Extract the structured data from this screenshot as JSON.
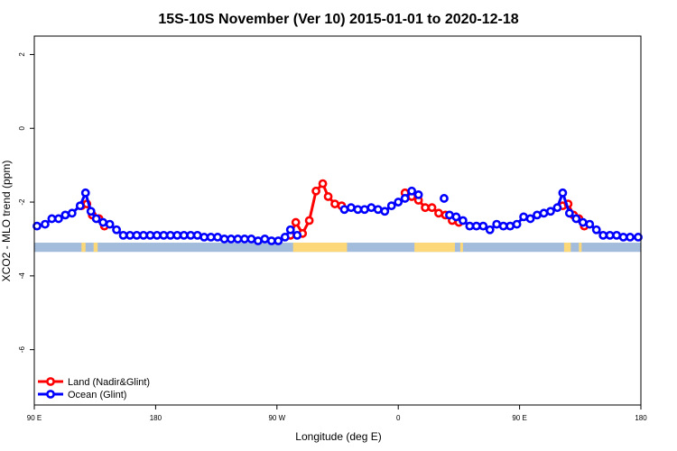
{
  "chart_data": {
    "type": "line",
    "title": "15S-10S November (Ver 10)   2015-01-01 to 2020-12-18",
    "xlabel": "Longitude (deg E)",
    "ylabel": "XCO2 - MLO trend (ppm)",
    "xlim": [
      90,
      540
    ],
    "ylim": [
      -7.5,
      2.5
    ],
    "x_ticks": [
      {
        "value": 90,
        "label": "90 E"
      },
      {
        "value": 180,
        "label": "180"
      },
      {
        "value": 270,
        "label": "90 W"
      },
      {
        "value": 360,
        "label": "0"
      },
      {
        "value": 450,
        "label": "90 E"
      },
      {
        "value": 540,
        "label": "180"
      }
    ],
    "y_ticks": [
      {
        "value": 2,
        "label": "2"
      },
      {
        "value": 0,
        "label": "0"
      },
      {
        "value": -2,
        "label": "-2"
      },
      {
        "value": -4,
        "label": "-4"
      },
      {
        "value": -6,
        "label": "-6"
      }
    ],
    "legend_position": "bottom-left",
    "land_band": {
      "y_top": -3.1,
      "y_bottom": -3.35,
      "ocean_color": "#a4bcdc",
      "land_color": "#fdd878"
    },
    "land_segments": [
      [
        125,
        128
      ],
      [
        134,
        137
      ],
      [
        282,
        322
      ],
      [
        372,
        402
      ],
      [
        406,
        408
      ],
      [
        483,
        488
      ],
      [
        494,
        496
      ]
    ],
    "series": [
      {
        "name": "Land (Nadir&Glint)",
        "color": "#ff0000",
        "segments": [
          [
            [
              125,
              -2.1
            ],
            [
              129,
              -2.05
            ],
            [
              133,
              -2.35
            ],
            [
              138,
              -2.45
            ],
            [
              142,
              -2.65
            ]
          ],
          [
            [
              280,
              -2.9
            ],
            [
              284,
              -2.55
            ],
            [
              289,
              -2.85
            ],
            [
              294,
              -2.5
            ],
            [
              299,
              -1.7
            ],
            [
              304,
              -1.5
            ],
            [
              308,
              -1.85
            ],
            [
              313,
              -2.05
            ],
            [
              318,
              -2.1
            ]
          ],
          [
            [
              365,
              -1.75
            ],
            [
              370,
              -1.85
            ],
            [
              375,
              -1.95
            ],
            [
              380,
              -2.15
            ],
            [
              385,
              -2.15
            ],
            [
              390,
              -2.3
            ],
            [
              395,
              -2.35
            ],
            [
              400,
              -2.5
            ],
            [
              405,
              -2.55
            ]
          ],
          [
            [
              482,
              -2.1
            ],
            [
              486,
              -2.05
            ],
            [
              490,
              -2.35
            ],
            [
              494,
              -2.45
            ],
            [
              498,
              -2.65
            ]
          ]
        ]
      },
      {
        "name": "Ocean (Glint)",
        "color": "#0000ff",
        "segments": [
          [
            [
              92,
              -2.65
            ],
            [
              98,
              -2.6
            ],
            [
              103,
              -2.45
            ],
            [
              108,
              -2.45
            ],
            [
              113,
              -2.35
            ],
            [
              118,
              -2.3
            ],
            [
              124,
              -2.1
            ],
            [
              128,
              -1.75
            ],
            [
              132,
              -2.25
            ],
            [
              136,
              -2.45
            ],
            [
              141,
              -2.55
            ],
            [
              146,
              -2.6
            ],
            [
              151,
              -2.75
            ],
            [
              156,
              -2.9
            ],
            [
              161,
              -2.9
            ],
            [
              166,
              -2.9
            ],
            [
              171,
              -2.9
            ],
            [
              176,
              -2.9
            ],
            [
              181,
              -2.9
            ],
            [
              186,
              -2.9
            ],
            [
              191,
              -2.9
            ],
            [
              196,
              -2.9
            ],
            [
              201,
              -2.9
            ],
            [
              206,
              -2.9
            ],
            [
              211,
              -2.9
            ],
            [
              216,
              -2.95
            ],
            [
              221,
              -2.95
            ],
            [
              226,
              -2.95
            ],
            [
              231,
              -3.0
            ],
            [
              236,
              -3.0
            ],
            [
              241,
              -3.0
            ],
            [
              246,
              -3.0
            ],
            [
              251,
              -3.0
            ],
            [
              256,
              -3.05
            ],
            [
              261,
              -3.0
            ],
            [
              266,
              -3.05
            ],
            [
              271,
              -3.05
            ],
            [
              276,
              -2.95
            ],
            [
              280,
              -2.75
            ],
            [
              285,
              -2.9
            ]
          ],
          [
            [
              320,
              -2.2
            ],
            [
              325,
              -2.15
            ],
            [
              330,
              -2.2
            ],
            [
              335,
              -2.2
            ],
            [
              340,
              -2.15
            ],
            [
              345,
              -2.2
            ],
            [
              350,
              -2.25
            ],
            [
              355,
              -2.1
            ],
            [
              360,
              -2.0
            ],
            [
              365,
              -1.9
            ],
            [
              370,
              -1.7
            ],
            [
              375,
              -1.8
            ]
          ],
          [
            [
              394,
              -1.9
            ]
          ],
          [
            [
              398,
              -2.35
            ],
            [
              403,
              -2.4
            ],
            [
              408,
              -2.5
            ],
            [
              413,
              -2.65
            ],
            [
              418,
              -2.65
            ],
            [
              423,
              -2.65
            ],
            [
              428,
              -2.75
            ],
            [
              433,
              -2.6
            ],
            [
              438,
              -2.65
            ],
            [
              443,
              -2.65
            ],
            [
              448,
              -2.6
            ],
            [
              453,
              -2.4
            ],
            [
              458,
              -2.45
            ],
            [
              463,
              -2.35
            ],
            [
              468,
              -2.3
            ],
            [
              473,
              -2.25
            ],
            [
              478,
              -2.15
            ],
            [
              482,
              -1.75
            ],
            [
              487,
              -2.3
            ],
            [
              492,
              -2.45
            ],
            [
              497,
              -2.55
            ],
            [
              502,
              -2.6
            ],
            [
              507,
              -2.75
            ],
            [
              512,
              -2.9
            ],
            [
              517,
              -2.9
            ],
            [
              522,
              -2.9
            ],
            [
              527,
              -2.95
            ],
            [
              532,
              -2.95
            ],
            [
              538,
              -2.95
            ]
          ]
        ]
      }
    ]
  }
}
